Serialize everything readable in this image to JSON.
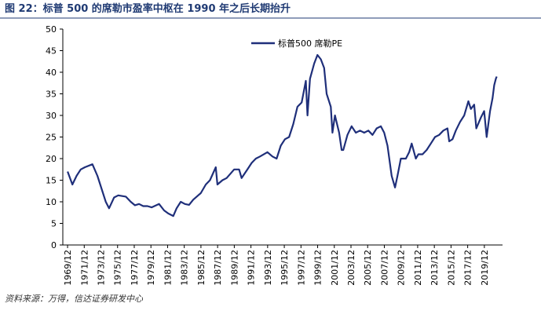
{
  "chart_data": {
    "type": "line",
    "title": "图 22：标普 500 的席勒市盈率中枢在 1990 年之后长期抬升",
    "source": "资料来源：万得，信达证券研发中心",
    "legend": "top-center",
    "xlim": [
      1969.35,
      2022.1
    ],
    "ylim": [
      0,
      50
    ],
    "yticks": [
      0,
      5,
      10,
      15,
      20,
      25,
      30,
      35,
      40,
      45,
      50
    ],
    "xticks": [
      {
        "value": 1969.92,
        "label": "1969/12"
      },
      {
        "value": 1971.92,
        "label": "1971/12"
      },
      {
        "value": 1973.92,
        "label": "1973/12"
      },
      {
        "value": 1975.92,
        "label": "1975/12"
      },
      {
        "value": 1977.92,
        "label": "1977/12"
      },
      {
        "value": 1979.92,
        "label": "1979/12"
      },
      {
        "value": 1981.92,
        "label": "1981/12"
      },
      {
        "value": 1983.92,
        "label": "1983/12"
      },
      {
        "value": 1985.92,
        "label": "1985/12"
      },
      {
        "value": 1987.92,
        "label": "1987/12"
      },
      {
        "value": 1989.92,
        "label": "1989/12"
      },
      {
        "value": 1991.92,
        "label": "1991/12"
      },
      {
        "value": 1993.92,
        "label": "1993/12"
      },
      {
        "value": 1995.92,
        "label": "1995/12"
      },
      {
        "value": 1997.92,
        "label": "1997/12"
      },
      {
        "value": 1999.92,
        "label": "1999/12"
      },
      {
        "value": 2001.92,
        "label": "2001/12"
      },
      {
        "value": 2003.92,
        "label": "2003/12"
      },
      {
        "value": 2005.92,
        "label": "2005/12"
      },
      {
        "value": 2007.92,
        "label": "2007/12"
      },
      {
        "value": 2009.92,
        "label": "2009/12"
      },
      {
        "value": 2011.92,
        "label": "2011/12"
      },
      {
        "value": 2013.92,
        "label": "2013/12"
      },
      {
        "value": 2015.92,
        "label": "2015/12"
      },
      {
        "value": 2017.92,
        "label": "2017/12"
      },
      {
        "value": 2019.92,
        "label": "2019/12"
      }
    ],
    "x": [
      1969.92,
      1970.5,
      1971.0,
      1971.5,
      1972.0,
      1972.9,
      1973.5,
      1974.0,
      1974.5,
      1974.9,
      1975.5,
      1976.0,
      1976.9,
      1977.5,
      1978.0,
      1978.5,
      1979.0,
      1979.5,
      1980.0,
      1980.9,
      1981.5,
      1982.0,
      1982.6,
      1983.0,
      1983.5,
      1984.0,
      1984.5,
      1985.0,
      1985.9,
      1986.5,
      1987.0,
      1987.7,
      1987.9,
      1988.5,
      1989.0,
      1989.9,
      1990.5,
      1990.8,
      1991.5,
      1992.0,
      1992.5,
      1993.0,
      1993.9,
      1994.5,
      1995.0,
      1995.5,
      1996.0,
      1996.5,
      1997.0,
      1997.5,
      1998.0,
      1998.5,
      1998.7,
      1999.0,
      1999.5,
      1999.9,
      2000.3,
      2000.7,
      2001.0,
      2001.5,
      2001.7,
      2002.0,
      2002.5,
      2002.8,
      2003.0,
      2003.5,
      2004.0,
      2004.5,
      2005.0,
      2005.5,
      2006.0,
      2006.5,
      2007.0,
      2007.5,
      2007.9,
      2008.3,
      2008.8,
      2009.2,
      2009.5,
      2009.9,
      2010.5,
      2010.9,
      2011.2,
      2011.7,
      2012.0,
      2012.5,
      2013.0,
      2013.5,
      2014.0,
      2014.5,
      2015.0,
      2015.5,
      2015.7,
      2016.1,
      2016.5,
      2017.0,
      2017.5,
      2018.0,
      2018.3,
      2018.7,
      2018.95,
      2019.5,
      2019.9,
      2020.2,
      2020.6,
      2020.9,
      2021.1,
      2021.3,
      2021.4
    ],
    "series": [
      {
        "name": "标普500  席勒PE",
        "color": "#1f2f7a",
        "values": [
          17,
          14,
          16,
          17.5,
          18,
          18.7,
          16,
          13,
          10,
          8.5,
          11,
          11.5,
          11.2,
          10,
          9.2,
          9.5,
          9,
          9,
          8.7,
          9.5,
          8,
          7.3,
          6.7,
          8.5,
          10,
          9.5,
          9.3,
          10.5,
          12,
          14,
          15,
          18,
          14,
          15,
          15.5,
          17.5,
          17.5,
          15.5,
          17.5,
          19,
          20,
          20.5,
          21.5,
          20.5,
          20,
          23,
          24.5,
          25,
          28,
          32,
          33,
          38,
          30,
          38.5,
          42,
          44,
          43,
          41,
          35,
          32,
          26,
          30,
          26,
          22,
          22,
          25.5,
          27.5,
          26,
          26.5,
          26,
          26.5,
          25.5,
          27,
          27.5,
          26,
          23,
          16,
          13.3,
          16,
          20,
          20,
          21.5,
          23.5,
          20,
          21,
          21,
          22,
          23.5,
          25,
          25.5,
          26.5,
          27,
          24,
          24.5,
          26.5,
          28.5,
          30,
          33.3,
          31.5,
          32.5,
          27,
          29.5,
          31,
          25,
          31,
          34,
          37,
          38.5,
          39
        ]
      }
    ]
  }
}
